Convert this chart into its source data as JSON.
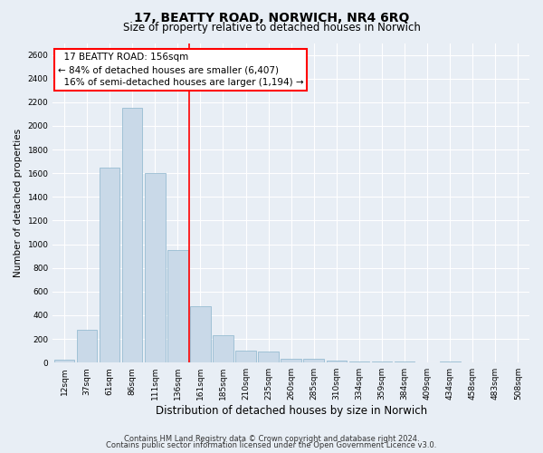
{
  "title": "17, BEATTY ROAD, NORWICH, NR4 6RQ",
  "subtitle": "Size of property relative to detached houses in Norwich",
  "xlabel": "Distribution of detached houses by size in Norwich",
  "ylabel": "Number of detached properties",
  "categories": [
    "12sqm",
    "37sqm",
    "61sqm",
    "86sqm",
    "111sqm",
    "136sqm",
    "161sqm",
    "185sqm",
    "210sqm",
    "235sqm",
    "260sqm",
    "285sqm",
    "310sqm",
    "334sqm",
    "359sqm",
    "384sqm",
    "409sqm",
    "434sqm",
    "458sqm",
    "483sqm",
    "508sqm"
  ],
  "values": [
    22,
    280,
    1650,
    2150,
    1600,
    950,
    480,
    235,
    100,
    90,
    35,
    30,
    20,
    10,
    10,
    7,
    5,
    10,
    5,
    5,
    5
  ],
  "bar_color": "#c9d9e8",
  "bar_edge_color": "#8ab4cc",
  "vline_x": 5.5,
  "vline_color": "red",
  "annotation_text": "  17 BEATTY ROAD: 156sqm\n← 84% of detached houses are smaller (6,407)\n  16% of semi-detached houses are larger (1,194) →",
  "annotation_box_color": "white",
  "annotation_box_edge_color": "red",
  "ylim": [
    0,
    2700
  ],
  "yticks": [
    0,
    200,
    400,
    600,
    800,
    1000,
    1200,
    1400,
    1600,
    1800,
    2000,
    2200,
    2400,
    2600
  ],
  "footer1": "Contains HM Land Registry data © Crown copyright and database right 2024.",
  "footer2": "Contains public sector information licensed under the Open Government Licence v3.0.",
  "bg_color": "#e8eef5",
  "plot_bg_color": "#e8eef5",
  "grid_color": "white",
  "title_fontsize": 10,
  "subtitle_fontsize": 8.5,
  "xlabel_fontsize": 8.5,
  "ylabel_fontsize": 7.5,
  "tick_fontsize": 6.5,
  "annotation_fontsize": 7.5,
  "footer_fontsize": 6
}
